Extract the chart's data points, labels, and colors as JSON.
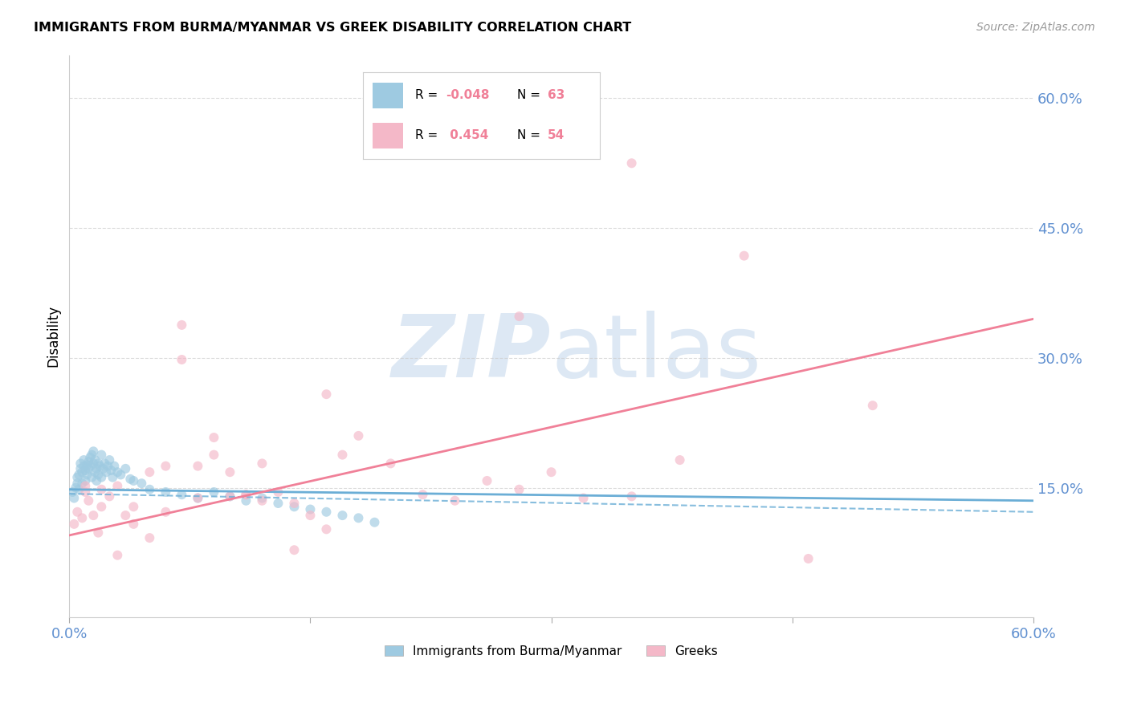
{
  "title": "IMMIGRANTS FROM BURMA/MYANMAR VS GREEK DISABILITY CORRELATION CHART",
  "source": "Source: ZipAtlas.com",
  "ylabel": "Disability",
  "ytick_labels": [
    "60.0%",
    "45.0%",
    "30.0%",
    "15.0%"
  ],
  "ytick_values": [
    0.6,
    0.45,
    0.3,
    0.15
  ],
  "xlim": [
    0.0,
    0.6
  ],
  "ylim": [
    0.0,
    0.65
  ],
  "blue_scatter_x": [
    0.002,
    0.003,
    0.004,
    0.005,
    0.005,
    0.006,
    0.006,
    0.007,
    0.007,
    0.008,
    0.008,
    0.009,
    0.009,
    0.01,
    0.01,
    0.011,
    0.011,
    0.012,
    0.012,
    0.013,
    0.013,
    0.014,
    0.014,
    0.015,
    0.015,
    0.016,
    0.016,
    0.017,
    0.017,
    0.018,
    0.018,
    0.019,
    0.02,
    0.02,
    0.021,
    0.022,
    0.023,
    0.024,
    0.025,
    0.026,
    0.027,
    0.028,
    0.03,
    0.032,
    0.035,
    0.038,
    0.04,
    0.045,
    0.05,
    0.06,
    0.07,
    0.08,
    0.09,
    0.1,
    0.11,
    0.12,
    0.13,
    0.14,
    0.15,
    0.16,
    0.17,
    0.18,
    0.19
  ],
  "blue_scatter_y": [
    0.145,
    0.138,
    0.15,
    0.155,
    0.162,
    0.148,
    0.165,
    0.172,
    0.178,
    0.155,
    0.168,
    0.175,
    0.182,
    0.158,
    0.17,
    0.176,
    0.165,
    0.18,
    0.172,
    0.185,
    0.175,
    0.188,
    0.162,
    0.178,
    0.192,
    0.168,
    0.182,
    0.158,
    0.172,
    0.165,
    0.178,
    0.175,
    0.188,
    0.162,
    0.172,
    0.178,
    0.168,
    0.175,
    0.182,
    0.17,
    0.162,
    0.175,
    0.168,
    0.165,
    0.172,
    0.16,
    0.158,
    0.155,
    0.148,
    0.145,
    0.142,
    0.138,
    0.145,
    0.14,
    0.135,
    0.138,
    0.132,
    0.128,
    0.125,
    0.122,
    0.118,
    0.115,
    0.11
  ],
  "pink_scatter_x": [
    0.003,
    0.005,
    0.008,
    0.01,
    0.012,
    0.015,
    0.018,
    0.02,
    0.025,
    0.03,
    0.035,
    0.04,
    0.05,
    0.06,
    0.07,
    0.08,
    0.09,
    0.1,
    0.11,
    0.12,
    0.13,
    0.14,
    0.15,
    0.16,
    0.17,
    0.18,
    0.2,
    0.22,
    0.24,
    0.26,
    0.28,
    0.3,
    0.32,
    0.35,
    0.38,
    0.42,
    0.46,
    0.5,
    0.01,
    0.02,
    0.03,
    0.04,
    0.05,
    0.06,
    0.07,
    0.08,
    0.09,
    0.1,
    0.11,
    0.12,
    0.14,
    0.16,
    0.28,
    0.35
  ],
  "pink_scatter_y": [
    0.108,
    0.122,
    0.115,
    0.145,
    0.135,
    0.118,
    0.098,
    0.128,
    0.14,
    0.152,
    0.118,
    0.108,
    0.168,
    0.175,
    0.298,
    0.175,
    0.188,
    0.14,
    0.142,
    0.135,
    0.145,
    0.132,
    0.118,
    0.258,
    0.188,
    0.21,
    0.178,
    0.142,
    0.135,
    0.158,
    0.148,
    0.168,
    0.138,
    0.14,
    0.182,
    0.418,
    0.068,
    0.245,
    0.152,
    0.148,
    0.072,
    0.128,
    0.092,
    0.122,
    0.338,
    0.138,
    0.208,
    0.168,
    0.142,
    0.178,
    0.078,
    0.102,
    0.348,
    0.525
  ],
  "blue_line_x": [
    0.0,
    0.6
  ],
  "blue_line_y": [
    0.148,
    0.135
  ],
  "blue_dashed_line_x": [
    0.0,
    0.6
  ],
  "blue_dashed_line_y": [
    0.143,
    0.122
  ],
  "pink_line_x": [
    0.0,
    0.6
  ],
  "pink_line_y": [
    0.095,
    0.345
  ],
  "scatter_alpha": 0.65,
  "scatter_size": 75,
  "blue_color": "#6baed6",
  "blue_scatter_color": "#9ecae1",
  "pink_color": "#f08098",
  "pink_scatter_color": "#f4b8c8",
  "grid_color": "#cccccc",
  "axis_label_color": "#6090d0",
  "background_color": "#ffffff",
  "watermark_zip": "ZIP",
  "watermark_atlas": "atlas",
  "watermark_color": "#dde8f4"
}
